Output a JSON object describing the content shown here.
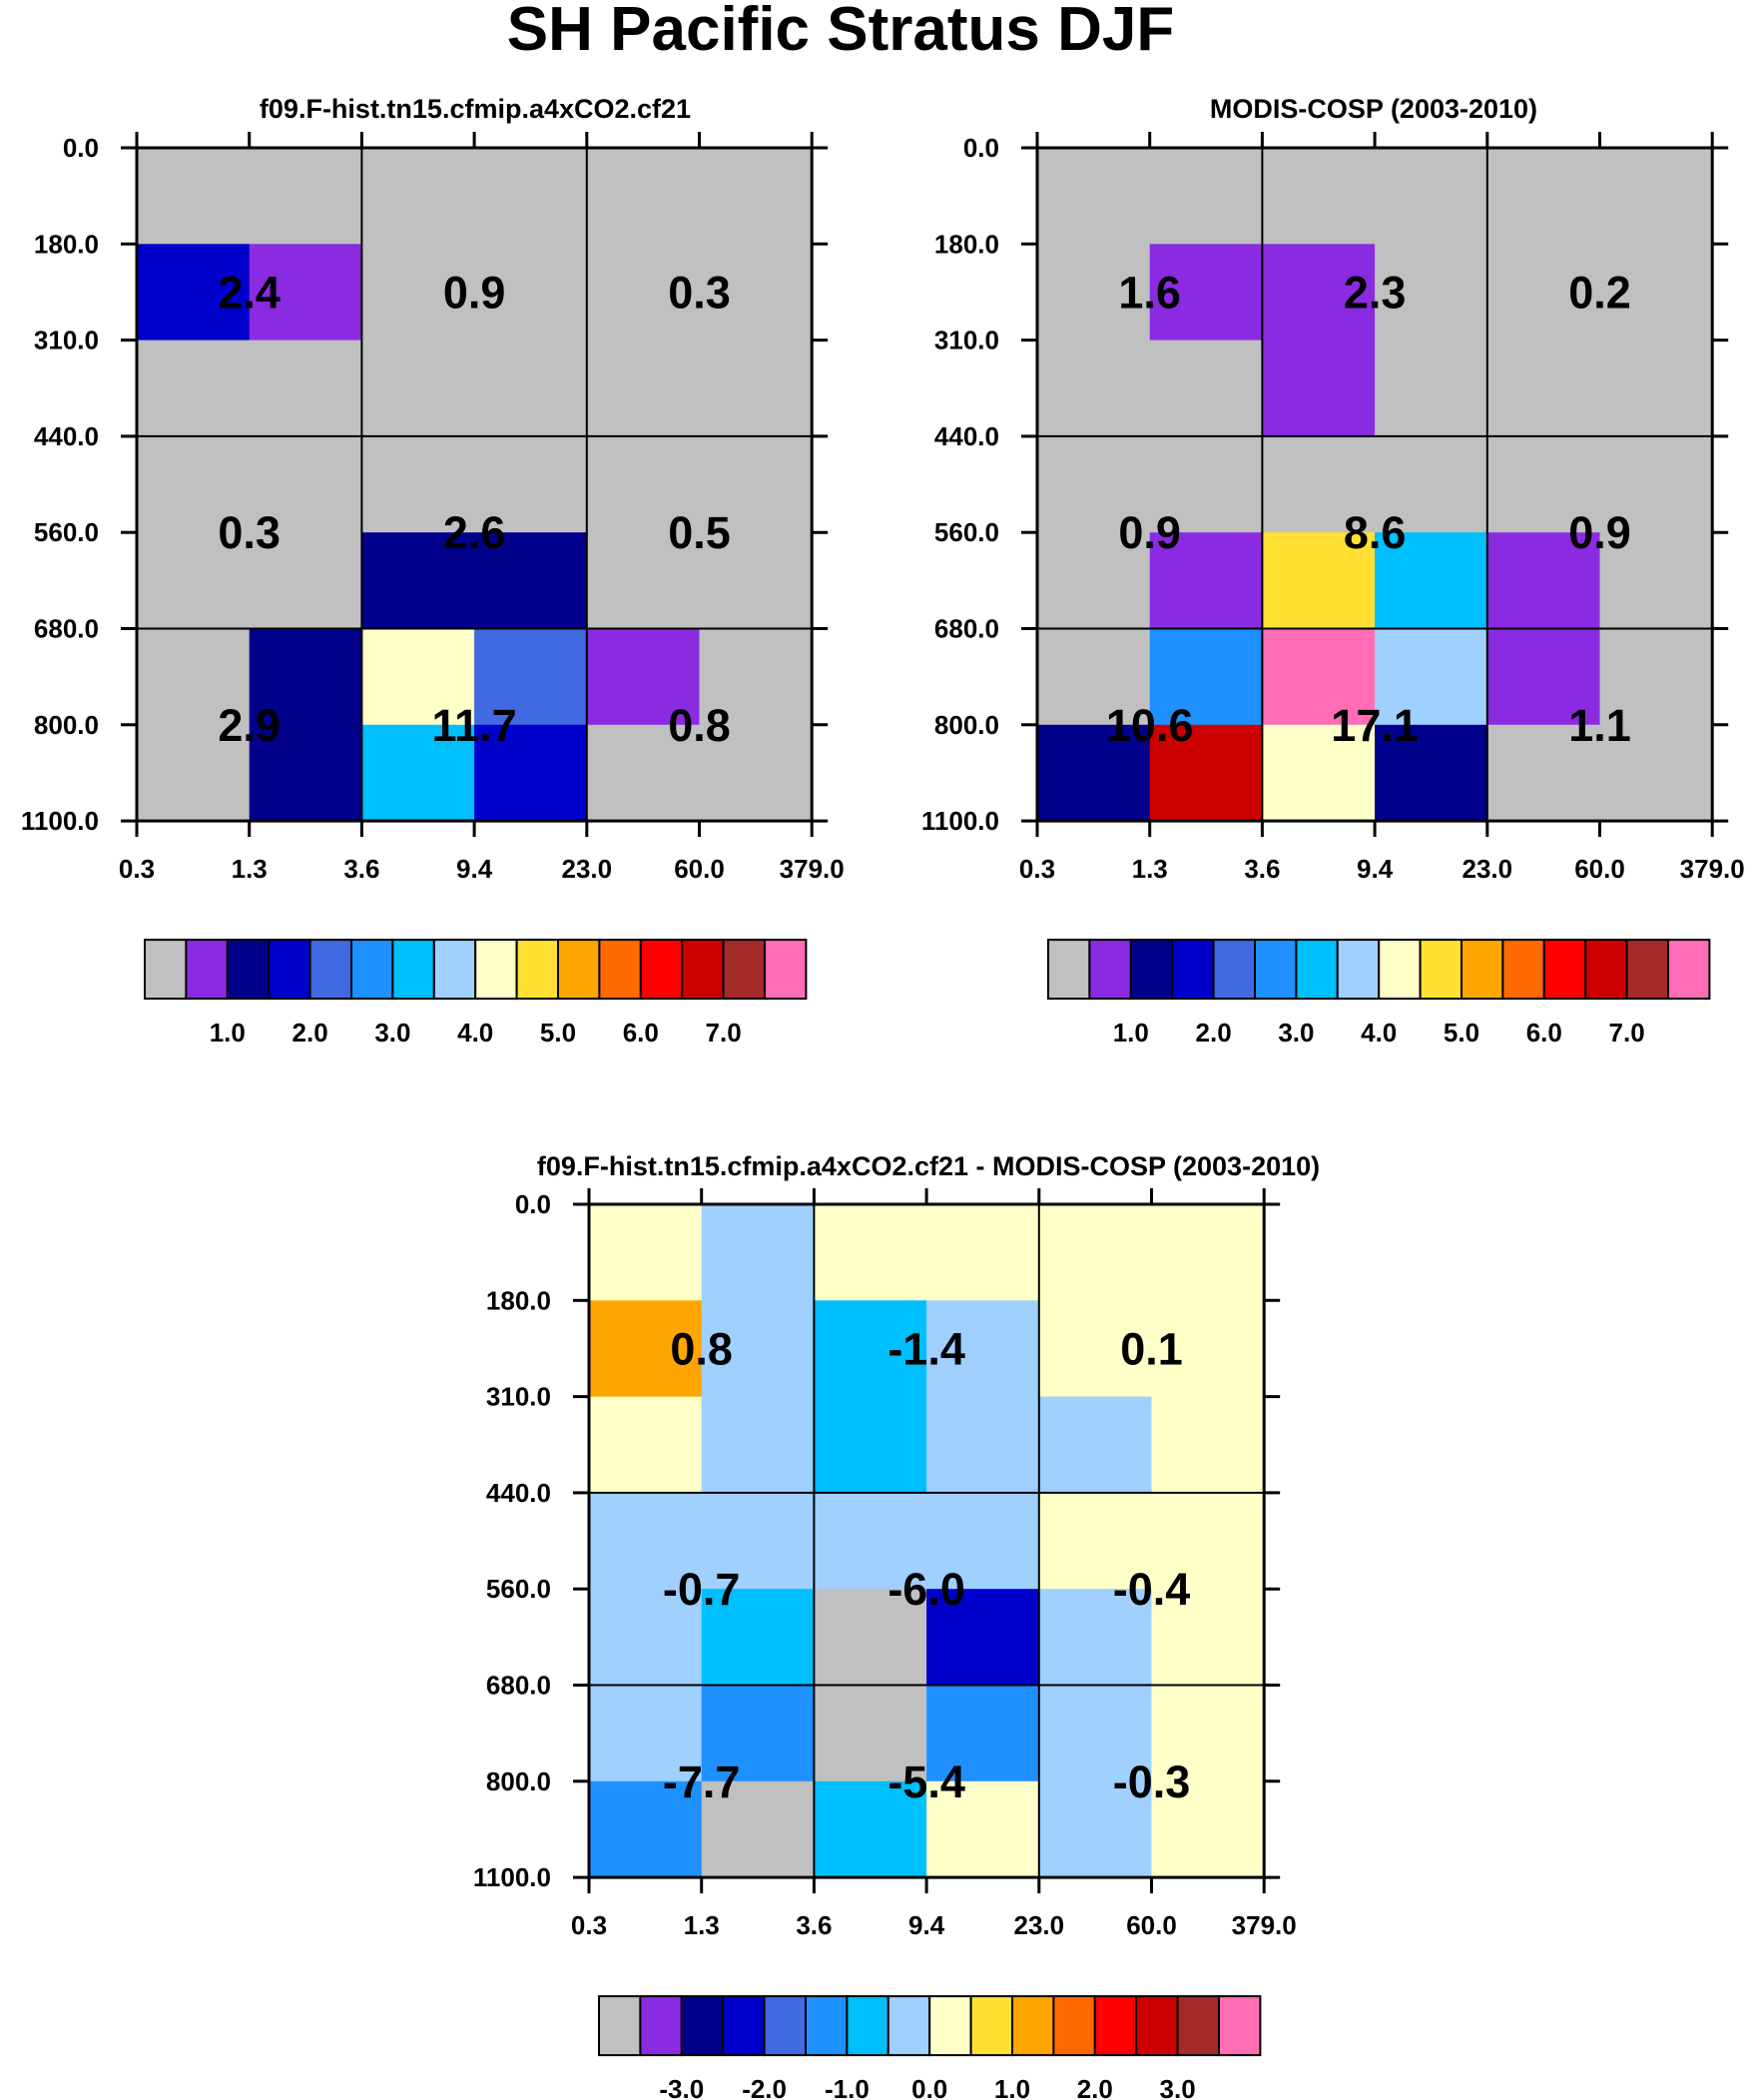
{
  "title": "SH Pacific Stratus DJF",
  "colors": {
    "missing": "#c0c0c0",
    "palette": [
      "#c0c0c0",
      "#8a2be2",
      "#00008b",
      "#0000cd",
      "#4169e1",
      "#1e90ff",
      "#00bfff",
      "#a0d0ff",
      "#ffffc8",
      "#ffe033",
      "#ffa500",
      "#ff6a00",
      "#ff0000",
      "#cd0000",
      "#a52a2a",
      "#ff6eb4"
    ]
  },
  "chart_data": [
    {
      "id": "model",
      "type": "heatmap",
      "title": "f09.F-hist.tn15.cfmip.a4xCO2.cf21",
      "x_tick_labels": [
        "0.3",
        "1.3",
        "3.6",
        "9.4",
        "23.0",
        "60.0",
        "379.0"
      ],
      "y_tick_labels": [
        "0.0",
        "180.0",
        "310.0",
        "440.0",
        "560.0",
        "680.0",
        "800.0",
        "1100.0"
      ],
      "cells": [
        [
          0,
          0,
          0,
          0,
          0,
          0
        ],
        [
          3,
          1,
          0,
          0,
          0,
          0
        ],
        [
          0,
          0,
          0,
          0,
          0,
          0
        ],
        [
          0,
          0,
          0,
          0,
          0,
          0
        ],
        [
          0,
          0,
          2,
          2,
          0,
          0
        ],
        [
          0,
          2,
          8,
          4,
          1,
          0
        ],
        [
          0,
          2,
          6,
          3,
          0,
          0
        ]
      ],
      "block_labels": [
        [
          "2.4",
          "0.9",
          "0.3"
        ],
        [
          "0.3",
          "2.6",
          "0.5"
        ],
        [
          "2.9",
          "11.7",
          "0.8"
        ]
      ],
      "colorbar": {
        "labels": [
          "1.0",
          "2.0",
          "3.0",
          "4.0",
          "5.0",
          "6.0",
          "7.0"
        ]
      }
    },
    {
      "id": "obs",
      "type": "heatmap",
      "title": "MODIS-COSP (2003-2010)",
      "x_tick_labels": [
        "0.3",
        "1.3",
        "3.6",
        "9.4",
        "23.0",
        "60.0",
        "379.0"
      ],
      "y_tick_labels": [
        "0.0",
        "180.0",
        "310.0",
        "440.0",
        "560.0",
        "680.0",
        "800.0",
        "1100.0"
      ],
      "cells": [
        [
          0,
          0,
          0,
          0,
          0,
          0
        ],
        [
          0,
          1,
          1,
          0,
          0,
          0
        ],
        [
          0,
          0,
          1,
          0,
          0,
          0
        ],
        [
          0,
          0,
          0,
          0,
          0,
          0
        ],
        [
          0,
          1,
          9,
          6,
          1,
          0
        ],
        [
          0,
          5,
          15,
          7,
          1,
          0
        ],
        [
          2,
          13,
          8,
          2,
          0,
          0
        ]
      ],
      "block_labels": [
        [
          "1.6",
          "2.3",
          "0.2"
        ],
        [
          "0.9",
          "8.6",
          "0.9"
        ],
        [
          "10.6",
          "17.1",
          "1.1"
        ]
      ],
      "colorbar": {
        "labels": [
          "1.0",
          "2.0",
          "3.0",
          "4.0",
          "5.0",
          "6.0",
          "7.0"
        ]
      }
    },
    {
      "id": "diff",
      "type": "heatmap",
      "title": "f09.F-hist.tn15.cfmip.a4xCO2.cf21 - MODIS-COSP (2003-2010)",
      "x_tick_labels": [
        "0.3",
        "1.3",
        "3.6",
        "9.4",
        "23.0",
        "60.0",
        "379.0"
      ],
      "y_tick_labels": [
        "0.0",
        "180.0",
        "310.0",
        "440.0",
        "560.0",
        "680.0",
        "800.0",
        "1100.0"
      ],
      "cells": [
        [
          8,
          7,
          8,
          8,
          8,
          8
        ],
        [
          10,
          7,
          6,
          7,
          8,
          8
        ],
        [
          8,
          7,
          6,
          7,
          7,
          8
        ],
        [
          7,
          7,
          7,
          7,
          8,
          8
        ],
        [
          7,
          6,
          0,
          3,
          7,
          8
        ],
        [
          7,
          5,
          0,
          5,
          7,
          8
        ],
        [
          5,
          0,
          6,
          8,
          7,
          8
        ]
      ],
      "block_labels": [
        [
          "0.8",
          "-1.4",
          "0.1"
        ],
        [
          "-0.7",
          "-6.0",
          "-0.4"
        ],
        [
          "-7.7",
          "-5.4",
          "-0.3"
        ]
      ],
      "colorbar": {
        "labels": [
          "-3.0",
          "-2.0",
          "-1.0",
          "0.0",
          "1.0",
          "2.0",
          "3.0"
        ]
      }
    }
  ]
}
